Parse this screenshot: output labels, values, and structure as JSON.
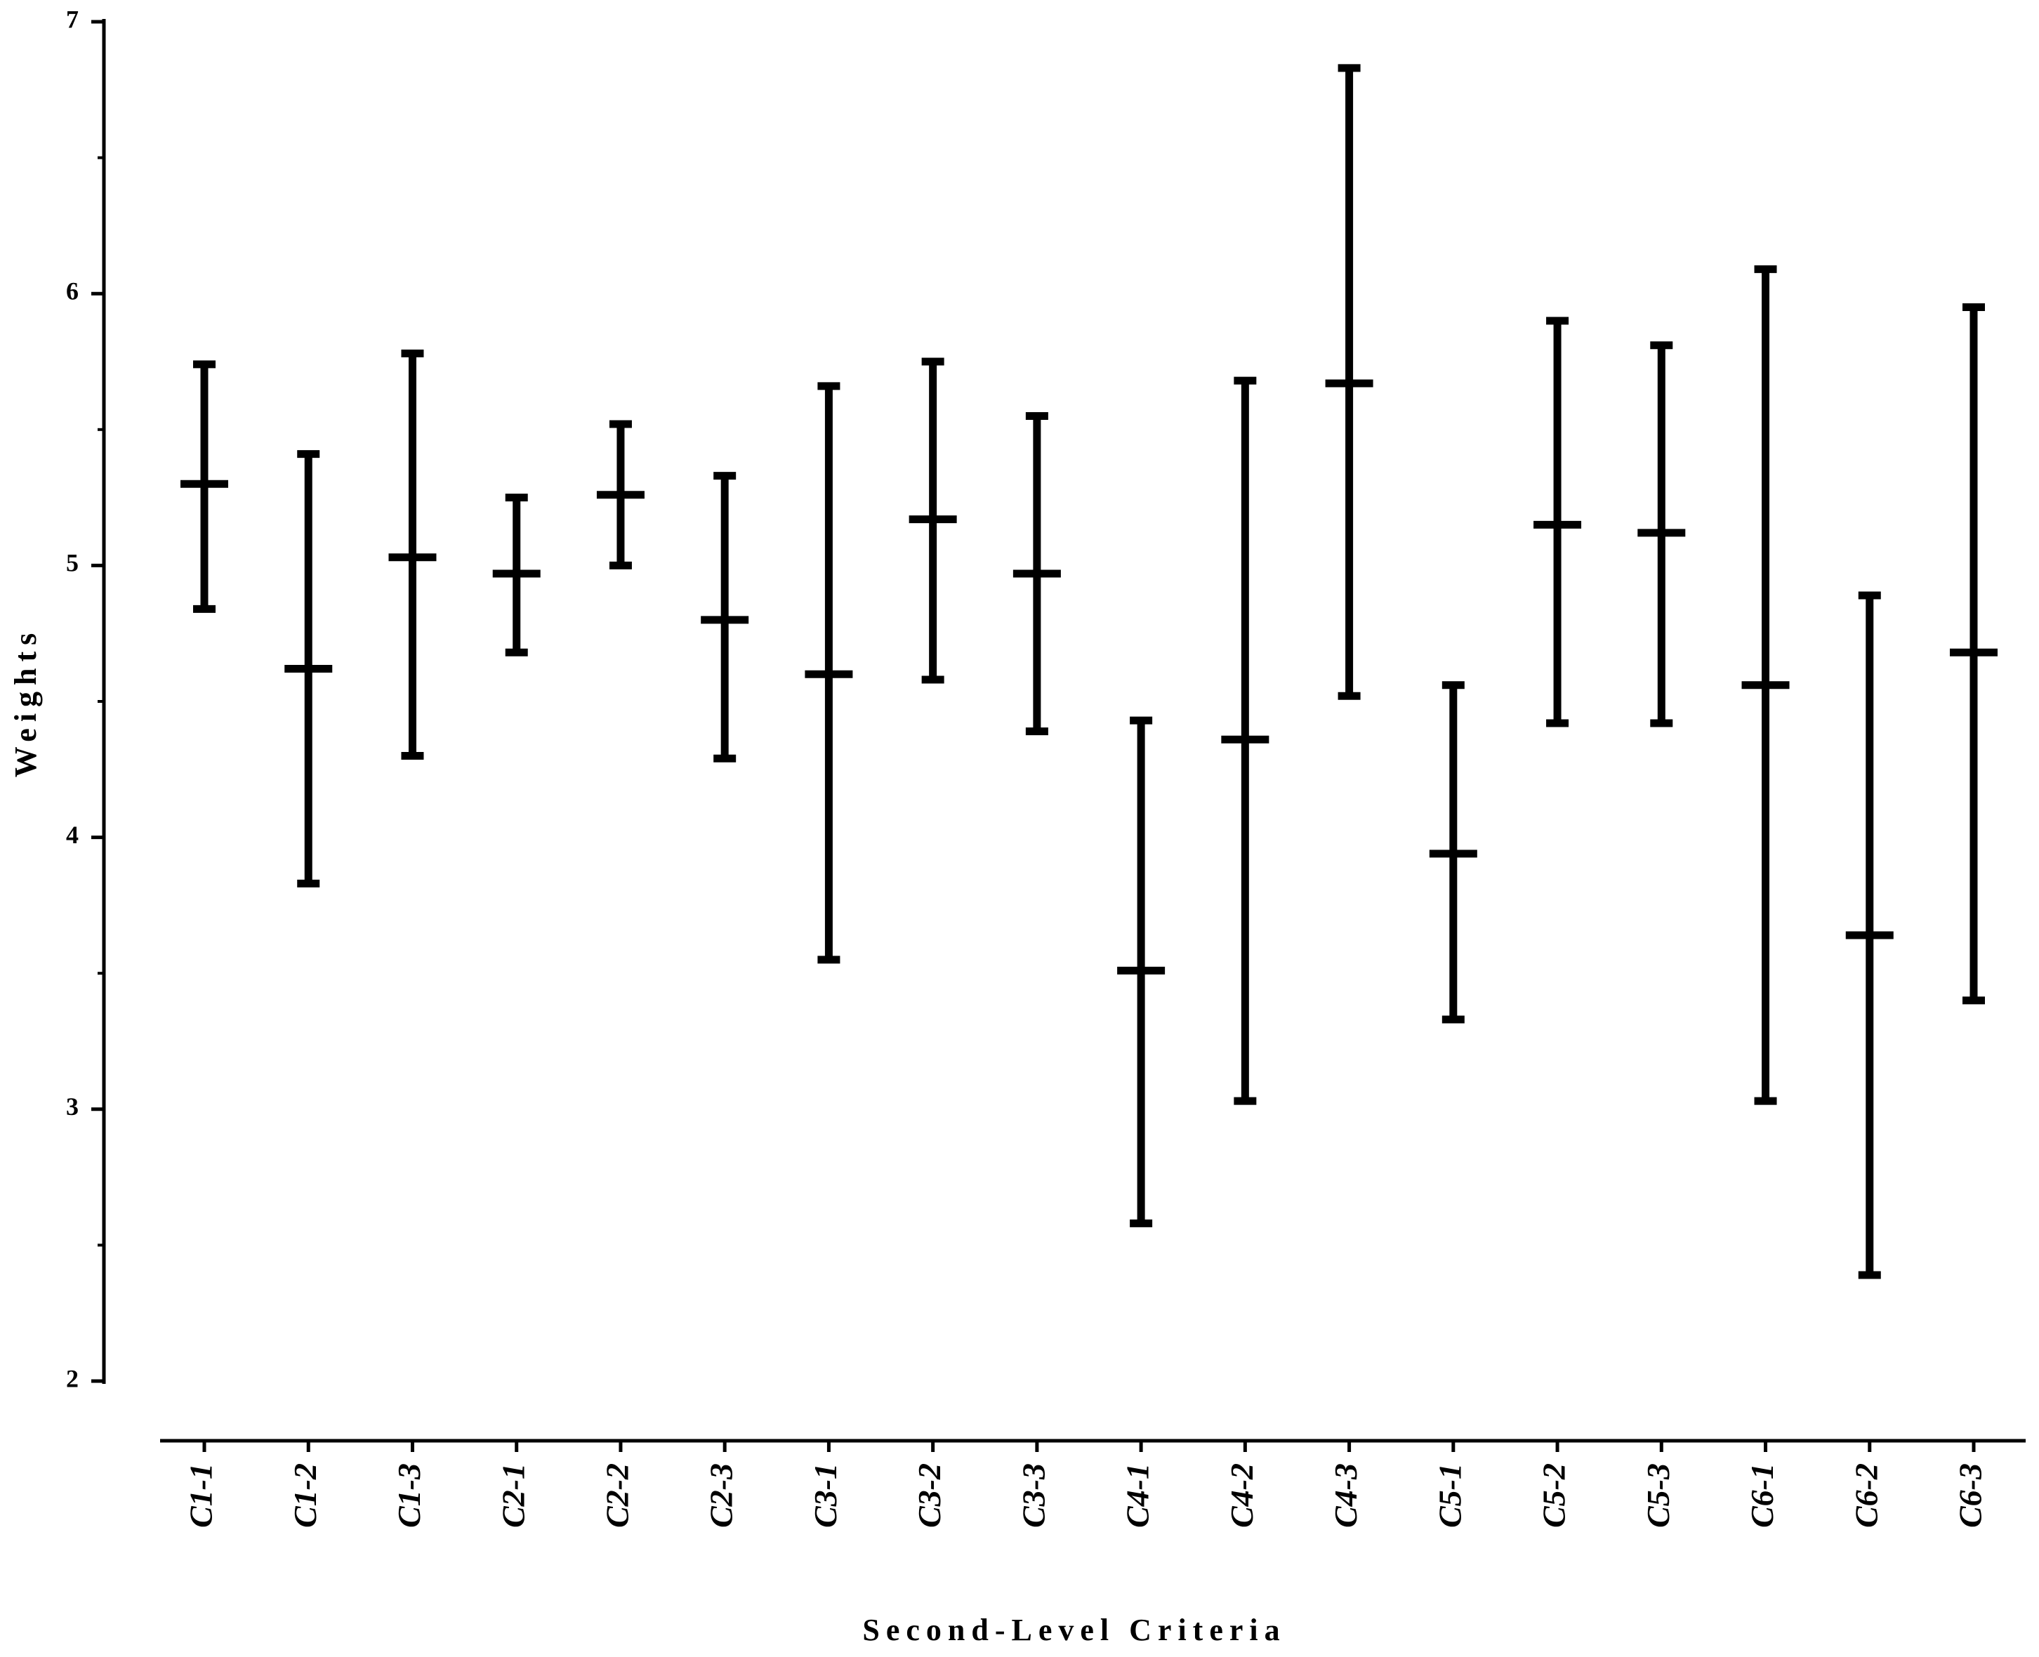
{
  "chart_data": {
    "type": "errorbar",
    "x_label": "Second-Level Criteria",
    "y_label": "Weights",
    "categories": [
      "C1-1",
      "C1-2",
      "C1-3",
      "C2-1",
      "C2-2",
      "C2-3",
      "C3-1",
      "C3-2",
      "C3-3",
      "C4-1",
      "C4-2",
      "C4-3",
      "C5-1",
      "C5-2",
      "C5-3",
      "C6-1",
      "C6-2",
      "C6-3"
    ],
    "values": [
      5.3,
      4.62,
      5.03,
      4.97,
      5.26,
      4.8,
      4.6,
      5.17,
      4.97,
      3.51,
      4.36,
      5.67,
      3.94,
      5.15,
      5.12,
      4.56,
      3.64,
      4.68
    ],
    "lows": [
      4.84,
      3.83,
      4.3,
      4.68,
      5.0,
      4.29,
      3.55,
      4.58,
      4.39,
      2.58,
      3.03,
      4.52,
      3.33,
      4.42,
      4.42,
      3.03,
      2.39,
      3.4
    ],
    "highs": [
      5.74,
      5.41,
      5.78,
      5.25,
      5.52,
      5.33,
      5.66,
      5.75,
      5.55,
      4.43,
      5.68,
      6.83,
      4.56,
      5.9,
      5.81,
      6.09,
      4.89,
      5.95
    ],
    "color": "#000000",
    "ylim": [
      2,
      7
    ],
    "yticks": [
      2,
      3,
      4,
      5,
      6,
      7
    ],
    "grid": false
  }
}
